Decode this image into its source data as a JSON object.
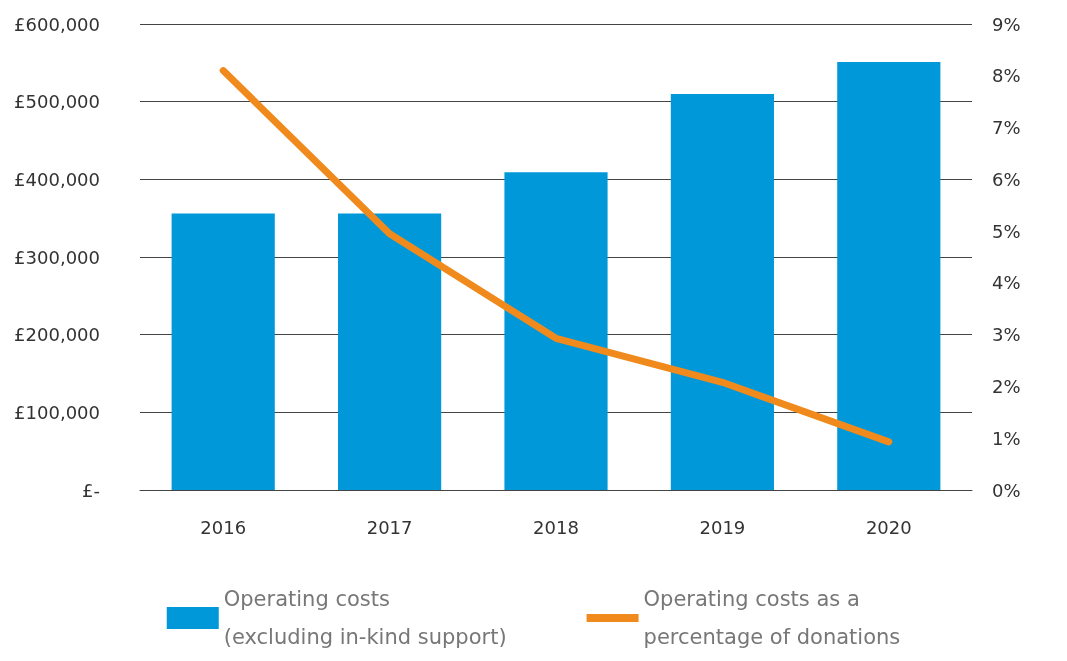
{
  "chart_data": {
    "type": "bar",
    "categories": [
      "2016",
      "2017",
      "2018",
      "2019",
      "2020"
    ],
    "series": [
      {
        "name": "Operating costs\n(excluding in-kind support)",
        "color": "#0098d8",
        "values": [
          356000,
          356000,
          409000,
          510000,
          551000
        ]
      },
      {
        "name": "Operating costs as a\npercentage of donations",
        "type": "line",
        "axis": "y2",
        "color": "#f08a1c",
        "values": [
          8.1,
          4.95,
          2.93,
          2.08,
          0.93
        ]
      }
    ],
    "ylim": [
      0,
      600000
    ],
    "yticks": [
      {
        "value": 0,
        "label": "£-"
      },
      {
        "value": 100000,
        "label": "£100,000"
      },
      {
        "value": 200000,
        "label": "£200,000"
      },
      {
        "value": 300000,
        "label": "£300,000"
      },
      {
        "value": 400000,
        "label": "£400,000"
      },
      {
        "value": 500000,
        "label": "£500,000"
      },
      {
        "value": 600000,
        "label": "£600,000"
      }
    ],
    "y2lim": [
      0,
      9
    ],
    "y2ticks": [
      {
        "value": 0,
        "label": "0%"
      },
      {
        "value": 1,
        "label": "1%"
      },
      {
        "value": 2,
        "label": "2%"
      },
      {
        "value": 3,
        "label": "3%"
      },
      {
        "value": 4,
        "label": "4%"
      },
      {
        "value": 5,
        "label": "5%"
      },
      {
        "value": 6,
        "label": "6%"
      },
      {
        "value": 7,
        "label": "7%"
      },
      {
        "value": 8,
        "label": "8%"
      },
      {
        "value": 9,
        "label": "9%"
      }
    ],
    "grid": "y",
    "legend": "bottom",
    "marker": "none"
  }
}
